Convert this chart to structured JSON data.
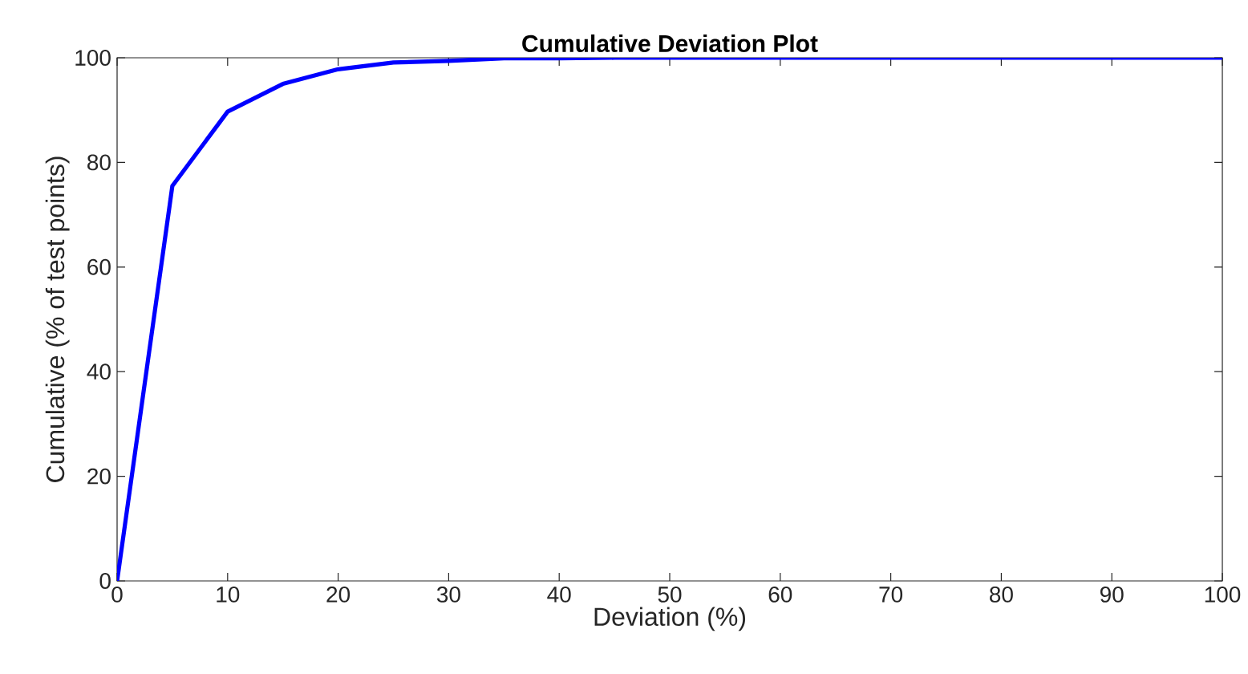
{
  "chart_data": {
    "type": "line",
    "title": "Cumulative Deviation Plot",
    "xlabel": "Deviation (%)",
    "ylabel": "Cumulative (% of test points)",
    "x": [
      0,
      5,
      10,
      15,
      20,
      25,
      30,
      35,
      40,
      45,
      50,
      55,
      60,
      65,
      70,
      75,
      80,
      85,
      90,
      95,
      100
    ],
    "values": [
      0,
      75.5,
      89.7,
      95,
      97.8,
      99.1,
      99.4,
      99.9,
      99.9,
      100,
      100,
      100,
      100,
      100,
      100,
      100,
      100,
      100,
      100,
      100,
      100
    ],
    "color": "#0000ff",
    "xlim": [
      0,
      100
    ],
    "ylim": [
      0,
      100
    ],
    "xticks": [
      0,
      10,
      20,
      30,
      40,
      50,
      60,
      70,
      80,
      90,
      100
    ],
    "yticks": [
      0,
      20,
      40,
      60,
      80,
      100
    ]
  }
}
